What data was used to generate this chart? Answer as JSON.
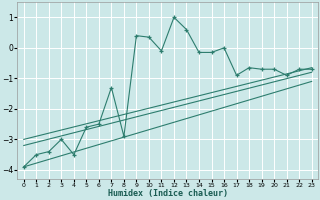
{
  "xlabel": "Humidex (Indice chaleur)",
  "ylabel": "",
  "bg_color": "#cce8e8",
  "grid_color": "#ffffff",
  "line_color": "#2d7d6e",
  "xlim": [
    -0.5,
    23.5
  ],
  "ylim": [
    -4.3,
    1.5
  ],
  "x_ticks": [
    0,
    1,
    2,
    3,
    4,
    5,
    6,
    7,
    8,
    9,
    10,
    11,
    12,
    13,
    14,
    15,
    16,
    17,
    18,
    19,
    20,
    21,
    22,
    23
  ],
  "y_ticks": [
    -4,
    -3,
    -2,
    -1,
    0,
    1
  ],
  "scatter_x": [
    0,
    1,
    2,
    3,
    4,
    5,
    6,
    7,
    8,
    9,
    10,
    11,
    12,
    13,
    14,
    15,
    16,
    17,
    18,
    19,
    20,
    21,
    22,
    23
  ],
  "scatter_y": [
    -3.9,
    -3.5,
    -3.4,
    -3.0,
    -3.5,
    -2.6,
    -2.5,
    -1.3,
    -2.9,
    0.4,
    0.35,
    -0.1,
    1.0,
    0.6,
    -0.15,
    -0.15,
    0.0,
    -0.9,
    -0.65,
    -0.7,
    -0.7,
    -0.9,
    -0.7,
    -0.7
  ],
  "line1_x": [
    0,
    23
  ],
  "line1_y": [
    -3.0,
    -0.65
  ],
  "line2_x": [
    0,
    23
  ],
  "line2_y": [
    -3.2,
    -0.8
  ],
  "line3_x": [
    0,
    23
  ],
  "line3_y": [
    -3.9,
    -1.1
  ]
}
